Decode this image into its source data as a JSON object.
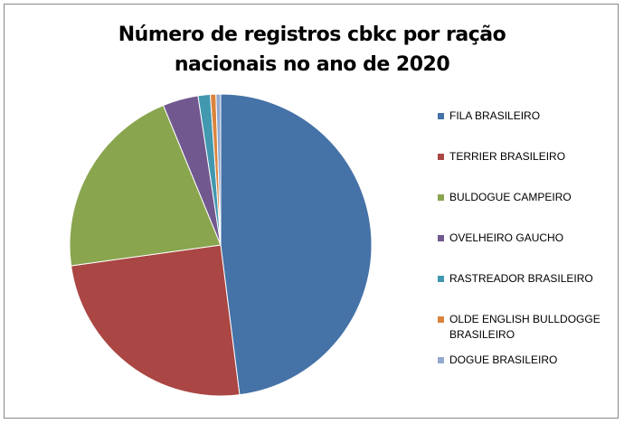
{
  "chart_data": {
    "type": "pie",
    "title": "Número de registros cbkc por ração nacionais no ano de 2020",
    "categories": [
      "FILA BRASILEIRO",
      "TERRIER BRASILEIRO",
      "BULDOGUE CAMPEIRO",
      "OVELHEIRO GAUCHO",
      "RASTREADOR BRASILEIRO",
      "OLDE ENGLISH BULLDOGGE BRASILEIRO",
      "DOGUE BRASILEIRO"
    ],
    "values": [
      48,
      24.8,
      21,
      3.8,
      1.3,
      0.6,
      0.5
    ],
    "colors": [
      "#4572a7",
      "#aa4643",
      "#89a54e",
      "#71588f",
      "#4198af",
      "#db843d",
      "#93a9cf"
    ],
    "legend": "right"
  }
}
